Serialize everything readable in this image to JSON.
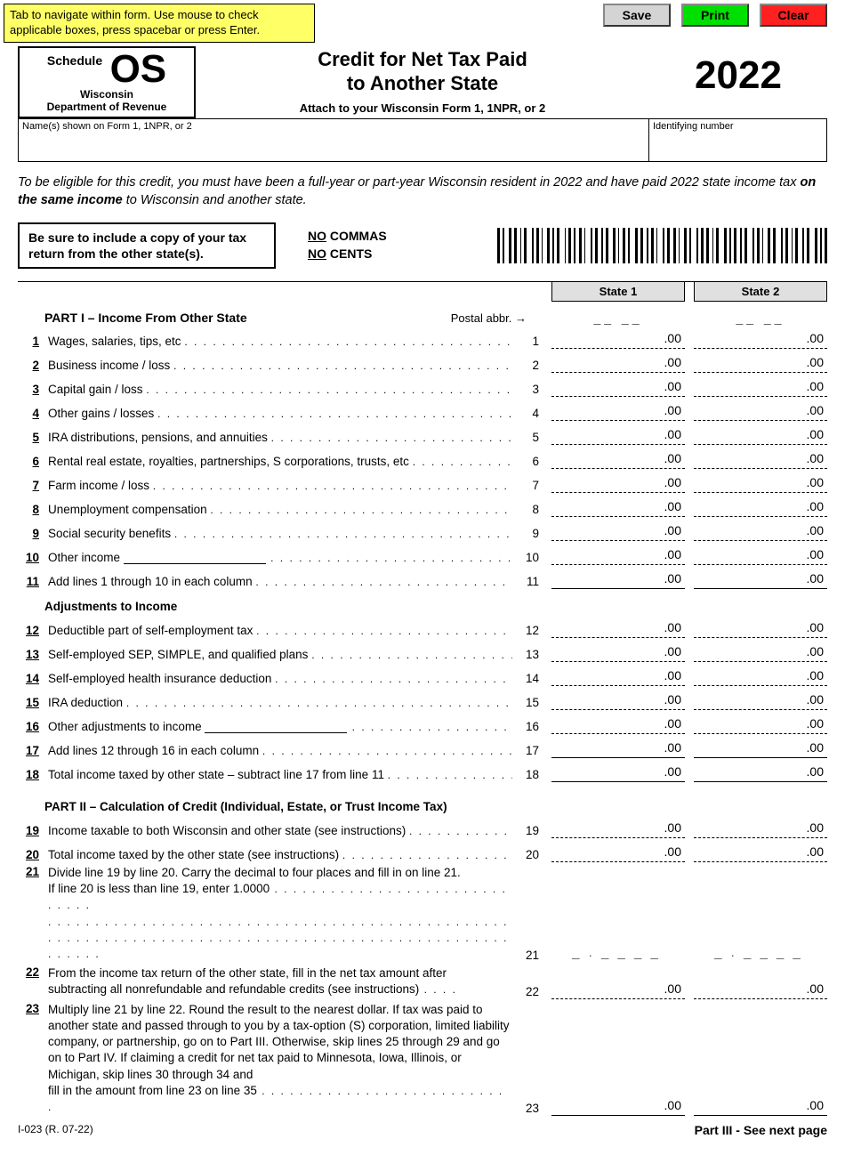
{
  "tab_hint": "Tab to navigate within form. Use mouse to check applicable boxes, press spacebar or press Enter.",
  "buttons": {
    "save": "Save",
    "print": "Print",
    "clear": "Clear"
  },
  "colors": {
    "hint_bg": "#ffff66",
    "print_bg": "#00e000",
    "clear_bg": "#ff2020",
    "state_head_bg": "#e0e0e0"
  },
  "header": {
    "schedule_word": "Schedule",
    "schedule_code": "OS",
    "state": "Wisconsin",
    "dept": "Department of Revenue",
    "title_line1": "Credit for Net Tax Paid",
    "title_line2": "to Another State",
    "attach": "Attach to your Wisconsin Form 1, 1NPR, or 2",
    "year": "2022"
  },
  "name_row": {
    "left": "Name(s) shown on Form 1, 1NPR, or 2",
    "right": "Identifying number"
  },
  "eligibility_pre": "To be eligible for this credit, you must have been a full-year or part-year Wisconsin resident in 2022 and have paid 2022 state income tax ",
  "eligibility_bold": "on the same income",
  "eligibility_post": " to Wisconsin and another state.",
  "copy_box": "Be sure to include a copy of your tax return from the other state(s).",
  "no_commas": {
    "l1a": "NO",
    "l1b": " COMMAS",
    "l2a": "NO",
    "l2b": " CENTS"
  },
  "state_headers": {
    "s1": "State 1",
    "s2": "State 2"
  },
  "postal_label": "Postal abbr. →",
  "postal_slot": "__ __",
  "part1_title": "PART I  –  Income From Other State",
  "adjust_title": "Adjustments to Income",
  "part2_title": "PART II – Calculation of Credit (Individual, Estate, or Trust Income Tax)",
  "suffix_00": ".00",
  "decimal_mask": "_ . _ _ _ _",
  "lines": {
    "l1": "Wages, salaries, tips, etc",
    "l2": "Business income / loss",
    "l3": "Capital gain / loss",
    "l4": "Other gains / losses",
    "l5": "IRA distributions, pensions, and annuities",
    "l6": "Rental real estate, royalties, partnerships, S corporations, trusts, etc",
    "l7": "Farm income / loss",
    "l8": "Unemployment compensation",
    "l9": "Social security benefits",
    "l10": "Other income",
    "l11": "Add lines 1 through 10 in each column",
    "l12": "Deductible part of self-employment tax",
    "l13": "Self-employed SEP, SIMPLE, and qualified plans",
    "l14": "Self-employed health insurance deduction",
    "l15": "IRA deduction",
    "l16": "Other adjustments to income",
    "l17": "Add lines 12 through 16 in each column",
    "l18": "Total income taxed by other state – subtract line 17 from line 11",
    "l19": "Income taxable to both Wisconsin and other state (see instructions)",
    "l20": "Total income taxed by the other state (see instructions)",
    "l21a": "Divide line 19 by line 20. Carry the decimal to four places and fill in on line 21.",
    "l21b": "If line 20 is less than line 19, enter 1.0000",
    "l22a": "From the income tax return of the other state, fill in the net tax amount after",
    "l22b": "subtracting all nonrefundable and refundable credits (see instructions)",
    "l23": "Multiply line 21 by line 22. Round the result to the nearest dollar. If tax was paid to another state and passed through to you by a tax-option (S) corporation, limited liability company, or partnership, go on to Part III. Otherwise, skip lines 25 through 29 and go on to Part IV. If claiming a credit for net tax paid to Minnesota, Iowa, Illinois, or Michigan, skip lines 30 through 34 and",
    "l23b": "fill in the amount from line 23 on line 35"
  },
  "footer": {
    "left": "I-023 (R. 07-22)",
    "right": "Part III - See next page"
  }
}
